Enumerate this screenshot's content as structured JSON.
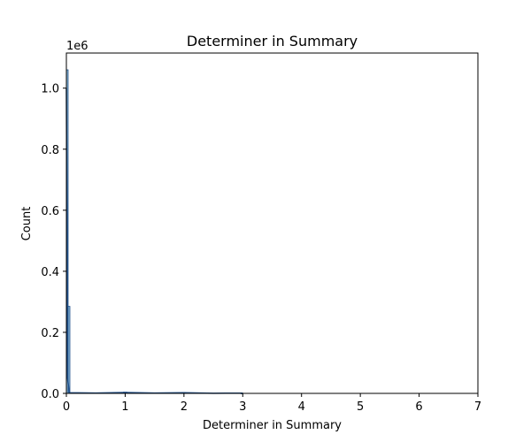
{
  "chart_data": {
    "type": "bar",
    "title": "Determiner in Summary",
    "xlabel": "Determiner in Summary",
    "ylabel": "Count",
    "y_multiplier_label": "1e6",
    "xlim": [
      0,
      7
    ],
    "ylim": [
      0,
      1.115
    ],
    "x_ticks": [
      0,
      1,
      2,
      3,
      4,
      5,
      6,
      7
    ],
    "y_ticks": [
      0.0,
      0.2,
      0.4,
      0.6,
      0.8,
      1.0
    ],
    "x_tick_labels": [
      "0",
      "1",
      "2",
      "3",
      "4",
      "5",
      "6",
      "7"
    ],
    "y_tick_labels": [
      "0.0",
      "0.2",
      "0.4",
      "0.6",
      "0.8",
      "1.0"
    ],
    "grid": false,
    "bar_color": "#8fbcd8",
    "edge_color": "#1f4f8a",
    "bins": [
      {
        "x0": 0.0,
        "x1": 0.03,
        "value": 1.06
      },
      {
        "x0": 0.03,
        "x1": 0.06,
        "value": 0.285
      },
      {
        "x0": 0.97,
        "x1": 1.03,
        "value": 0.004
      },
      {
        "x0": 1.97,
        "x1": 2.03,
        "value": 0.002
      },
      {
        "x0": 2.97,
        "x1": 3.0,
        "value": 0.001
      }
    ],
    "kde_line": [
      [
        0.0,
        1.0
      ],
      [
        0.01,
        0.6
      ],
      [
        0.02,
        0.05
      ],
      [
        0.05,
        0.002
      ],
      [
        0.5,
        0.001
      ],
      [
        1.0,
        0.003
      ],
      [
        1.5,
        0.001
      ],
      [
        2.0,
        0.002
      ],
      [
        2.5,
        0.0005
      ],
      [
        3.0,
        0.0008
      ]
    ]
  }
}
